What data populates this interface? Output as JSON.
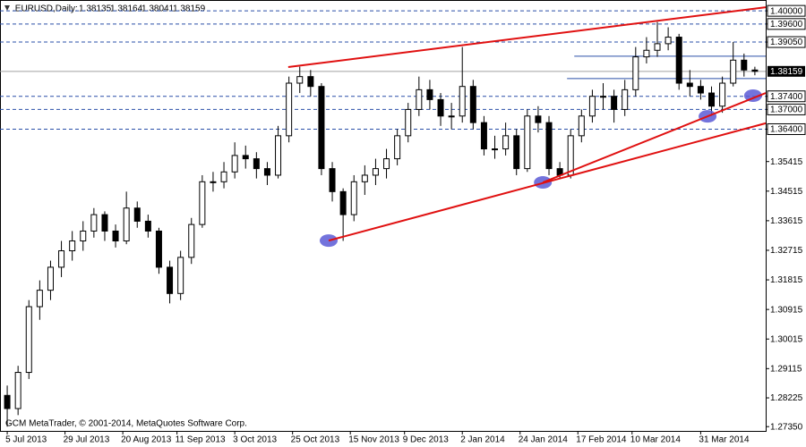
{
  "chart_data": {
    "type": "candlestick",
    "title": ".EURUSD,Daily:",
    "quote": [
      1.38135,
      1.38164,
      1.38041,
      1.38159
    ],
    "footer": "GCM MetaTrader, © 2001-2014, MetaQuotes Software Corp.",
    "x": [
      0,
      3,
      6,
      9,
      12,
      15,
      18,
      21,
      24,
      27,
      30,
      33,
      36,
      39,
      42,
      45,
      48,
      51,
      54,
      57,
      60,
      63,
      66,
      69,
      72,
      75,
      78,
      81,
      84,
      87,
      90,
      93,
      96,
      99,
      102,
      105,
      108,
      111,
      114,
      117,
      120,
      123,
      126,
      129,
      132,
      135,
      138,
      141,
      144,
      147,
      150,
      153,
      156,
      159,
      162,
      165,
      168,
      171,
      174,
      177,
      180,
      183,
      186,
      189,
      192,
      195,
      198,
      201,
      204,
      207
    ],
    "ohlc": [
      [
        1.283,
        1.286,
        1.2735,
        1.279
      ],
      [
        1.279,
        1.292,
        1.277,
        1.29
      ],
      [
        1.29,
        1.312,
        1.288,
        1.31
      ],
      [
        1.31,
        1.318,
        1.306,
        1.315
      ],
      [
        1.315,
        1.324,
        1.312,
        1.322
      ],
      [
        1.322,
        1.33,
        1.319,
        1.327
      ],
      [
        1.327,
        1.333,
        1.324,
        1.33
      ],
      [
        1.33,
        1.336,
        1.327,
        1.333
      ],
      [
        1.333,
        1.34,
        1.331,
        1.338
      ],
      [
        1.338,
        1.339,
        1.33,
        1.333
      ],
      [
        1.333,
        1.335,
        1.328,
        1.33
      ],
      [
        1.33,
        1.345,
        1.329,
        1.34
      ],
      [
        1.34,
        1.342,
        1.334,
        1.336
      ],
      [
        1.336,
        1.338,
        1.331,
        1.333
      ],
      [
        1.333,
        1.334,
        1.32,
        1.322
      ],
      [
        1.322,
        1.324,
        1.311,
        1.314
      ],
      [
        1.314,
        1.327,
        1.312,
        1.325
      ],
      [
        1.325,
        1.337,
        1.323,
        1.335
      ],
      [
        1.335,
        1.35,
        1.334,
        1.348
      ],
      [
        1.348,
        1.351,
        1.345,
        1.348
      ],
      [
        1.348,
        1.354,
        1.346,
        1.351
      ],
      [
        1.351,
        1.36,
        1.349,
        1.356
      ],
      [
        1.356,
        1.359,
        1.352,
        1.355
      ],
      [
        1.355,
        1.357,
        1.349,
        1.352
      ],
      [
        1.352,
        1.354,
        1.347,
        1.35
      ],
      [
        1.35,
        1.365,
        1.349,
        1.362
      ],
      [
        1.362,
        1.38,
        1.36,
        1.378
      ],
      [
        1.378,
        1.383,
        1.375,
        1.38
      ],
      [
        1.38,
        1.382,
        1.374,
        1.377
      ],
      [
        1.377,
        1.378,
        1.35,
        1.352
      ],
      [
        1.352,
        1.354,
        1.342,
        1.345
      ],
      [
        1.345,
        1.346,
        1.33,
        1.338
      ],
      [
        1.338,
        1.35,
        1.336,
        1.348
      ],
      [
        1.348,
        1.353,
        1.344,
        1.35
      ],
      [
        1.35,
        1.355,
        1.347,
        1.352
      ],
      [
        1.352,
        1.358,
        1.349,
        1.355
      ],
      [
        1.355,
        1.364,
        1.353,
        1.362
      ],
      [
        1.362,
        1.372,
        1.36,
        1.37
      ],
      [
        1.37,
        1.38,
        1.368,
        1.376
      ],
      [
        1.376,
        1.379,
        1.37,
        1.373
      ],
      [
        1.373,
        1.375,
        1.365,
        1.368
      ],
      [
        1.368,
        1.372,
        1.364,
        1.368
      ],
      [
        1.368,
        1.389,
        1.366,
        1.377
      ],
      [
        1.377,
        1.379,
        1.364,
        1.366
      ],
      [
        1.366,
        1.368,
        1.356,
        1.358
      ],
      [
        1.358,
        1.362,
        1.355,
        1.358
      ],
      [
        1.358,
        1.366,
        1.356,
        1.362
      ],
      [
        1.362,
        1.364,
        1.35,
        1.352
      ],
      [
        1.352,
        1.37,
        1.351,
        1.368
      ],
      [
        1.368,
        1.371,
        1.363,
        1.366
      ],
      [
        1.366,
        1.368,
        1.35,
        1.352
      ],
      [
        1.352,
        1.354,
        1.349,
        1.35
      ],
      [
        1.35,
        1.364,
        1.349,
        1.362
      ],
      [
        1.362,
        1.37,
        1.36,
        1.368
      ],
      [
        1.368,
        1.376,
        1.366,
        1.374
      ],
      [
        1.374,
        1.378,
        1.37,
        1.374
      ],
      [
        1.374,
        1.376,
        1.366,
        1.37
      ],
      [
        1.37,
        1.379,
        1.368,
        1.376
      ],
      [
        1.376,
        1.389,
        1.374,
        1.386
      ],
      [
        1.386,
        1.392,
        1.384,
        1.388
      ],
      [
        1.388,
        1.3966,
        1.386,
        1.39
      ],
      [
        1.39,
        1.395,
        1.388,
        1.392
      ],
      [
        1.392,
        1.393,
        1.376,
        1.378
      ],
      [
        1.378,
        1.382,
        1.374,
        1.377
      ],
      [
        1.377,
        1.379,
        1.373,
        1.375
      ],
      [
        1.375,
        1.377,
        1.368,
        1.371
      ],
      [
        1.371,
        1.38,
        1.369,
        1.378
      ],
      [
        1.378,
        1.3905,
        1.377,
        1.385
      ],
      [
        1.385,
        1.387,
        1.38,
        1.382
      ],
      [
        1.382,
        1.383,
        1.3804,
        1.3816
      ]
    ],
    "xlim": [
      -2,
      210
    ],
    "ylim": [
      1.2722,
      1.4033
    ],
    "xticks": [
      {
        "value": 0,
        "label": "5 Jul 2013"
      },
      {
        "value": 16,
        "label": "29 Jul 2013"
      },
      {
        "value": 32,
        "label": "20 Aug 2013"
      },
      {
        "value": 47,
        "label": "11 Sep 2013"
      },
      {
        "value": 63,
        "label": "3 Oct 2013"
      },
      {
        "value": 79,
        "label": "25 Oct 2013"
      },
      {
        "value": 95,
        "label": "15 Nov 2013"
      },
      {
        "value": 110,
        "label": "9 Dec 2013"
      },
      {
        "value": 126,
        "label": "2 Jan 2014"
      },
      {
        "value": 142,
        "label": "24 Jan 2014"
      },
      {
        "value": 158,
        "label": "17 Feb 2014"
      },
      {
        "value": 173,
        "label": "10 Mar 2014"
      },
      {
        "value": 192,
        "label": "31 Mar 2014"
      }
    ],
    "yticks": [
      {
        "value": 1.4,
        "label": "1.40000"
      },
      {
        "value": 1.396,
        "label": "1.39600"
      },
      {
        "value": 1.3905,
        "label": "1.39050"
      },
      {
        "value": 1.374,
        "label": "1.37400"
      },
      {
        "value": 1.37,
        "label": "1.37000"
      },
      {
        "value": 1.364,
        "label": "1.36400"
      },
      {
        "value": 1.35415,
        "label": "1.35415"
      },
      {
        "value": 1.34515,
        "label": "1.34515"
      },
      {
        "value": 1.33615,
        "label": "1.33615"
      },
      {
        "value": 1.32715,
        "label": "1.32715"
      },
      {
        "value": 1.31815,
        "label": "1.31815"
      },
      {
        "value": 1.30915,
        "label": "1.30915"
      },
      {
        "value": 1.30015,
        "label": "1.30015"
      },
      {
        "value": 1.29115,
        "label": "1.29115"
      },
      {
        "value": 1.28225,
        "label": "1.28225"
      },
      {
        "value": 1.2735,
        "label": "1.27350"
      }
    ],
    "levels": [
      1.4,
      1.396,
      1.3905,
      1.374,
      1.37,
      1.364
    ],
    "trendlines": [
      [
        77.8,
        1.3829,
        210,
        1.4011
      ],
      [
        89,
        1.3301,
        210,
        1.3658
      ],
      [
        148.3,
        1.3478,
        210,
        1.375
      ]
    ],
    "markers": [
      [
        89,
        1.3301
      ],
      [
        148.3,
        1.3478
      ],
      [
        193.9,
        1.3679
      ],
      [
        206.5,
        1.3742
      ]
    ],
    "hlines": [
      [
        157,
        1.3862
      ],
      [
        155,
        1.3794
      ]
    ],
    "colors": {
      "candle": "#000000",
      "level": "#2a4fa8",
      "trendline": "#e01010",
      "marker": "#5b5bd6",
      "hline": "#2a4fa8",
      "price": "#a0a0a0"
    }
  }
}
